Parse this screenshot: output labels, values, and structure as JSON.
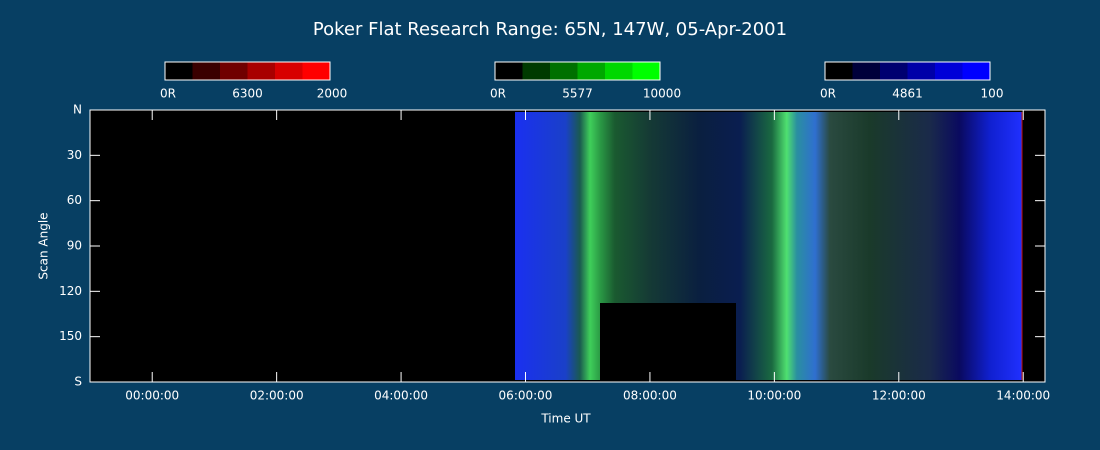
{
  "chart_data": {
    "type": "keogram",
    "title": "Poker Flat Research Range: 65N, 147W, 05-Apr-2001",
    "xlabel": "Time UT",
    "ylabel": "Scan Angle",
    "xlim": [
      -1,
      14.35
    ],
    "xticks": [
      {
        "value": 0,
        "label": "00:00:00"
      },
      {
        "value": 2,
        "label": "02:00:00"
      },
      {
        "value": 4,
        "label": "04:00:00"
      },
      {
        "value": 6,
        "label": "06:00:00"
      },
      {
        "value": 8,
        "label": "08:00:00"
      },
      {
        "value": 10,
        "label": "10:00:00"
      },
      {
        "value": 12,
        "label": "12:00:00"
      },
      {
        "value": 14,
        "label": "14:00:00"
      }
    ],
    "ylim": [
      180,
      0
    ],
    "yticks": [
      {
        "value": 0,
        "label": "N"
      },
      30,
      60,
      90,
      120,
      150,
      {
        "value": 180,
        "label": "S"
      }
    ],
    "colorbars": [
      {
        "name": "6300",
        "range": [
          {
            "value": 0,
            "label": "0R"
          },
          2000
        ],
        "colors": [
          "#000000",
          "#3a0000",
          "#700000",
          "#a80000",
          "#d80000",
          "#ff0000"
        ]
      },
      {
        "name": "5577",
        "range": [
          {
            "value": 0,
            "label": "0R"
          },
          10000
        ],
        "colors": [
          "#000000",
          "#003a00",
          "#007000",
          "#00a800",
          "#00d800",
          "#00ff00"
        ]
      },
      {
        "name": "4861",
        "range": [
          {
            "value": 0,
            "label": "0R"
          },
          100
        ],
        "colors": [
          "#000000",
          "#00003a",
          "#000070",
          "#0000a8",
          "#0000d8",
          "#0000ff"
        ]
      }
    ]
  }
}
